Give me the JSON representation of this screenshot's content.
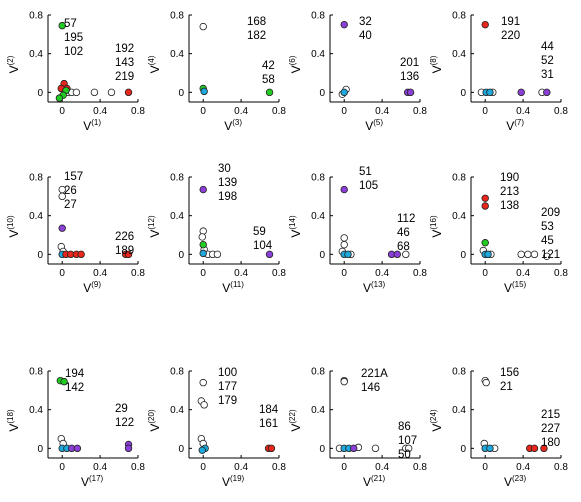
{
  "chart_data": {
    "type": "scatter",
    "xlim": [
      -0.15,
      0.8
    ],
    "ylim": [
      -0.1,
      0.8
    ],
    "xticks": [
      "0",
      "0.4",
      "0.8"
    ],
    "yticks": [
      "0",
      "0.4",
      "0.8"
    ],
    "grid": false,
    "colors": {
      "green": "#22cc22",
      "red": "#e8261c",
      "purple": "#8a3fd6",
      "cyan": "#1ea8dc",
      "open": "#ffffff",
      "edge": "#222222"
    },
    "panels": [
      {
        "xlabel_base": "V",
        "xlabel_sup": "(1)",
        "ylabel_base": "V",
        "ylabel_sup": "(2)",
        "annotations": [
          {
            "lines": [
              "57",
              "195",
              "102"
            ]
          },
          {
            "lines": [
              "192",
              "143",
              "219"
            ]
          }
        ],
        "points": [
          {
            "x": 0,
            "y": 0.69,
            "c": "green"
          },
          {
            "x": 0.02,
            "y": 0.09,
            "c": "red"
          },
          {
            "x": 0.05,
            "y": 0.04,
            "c": "red"
          },
          {
            "x": -0.01,
            "y": 0.04,
            "c": "red"
          },
          {
            "x": 0.04,
            "y": 0.02,
            "c": "green"
          },
          {
            "x": 0.01,
            "y": -0.03,
            "c": "green"
          },
          {
            "x": -0.03,
            "y": -0.06,
            "c": "green"
          },
          {
            "x": 0.06,
            "y": 0,
            "c": "open"
          },
          {
            "x": 0.1,
            "y": 0,
            "c": "open"
          },
          {
            "x": 0.15,
            "y": 0,
            "c": "open"
          },
          {
            "x": 0.34,
            "y": 0,
            "c": "open"
          },
          {
            "x": 0.52,
            "y": 0,
            "c": "open"
          },
          {
            "x": 0.7,
            "y": 0,
            "c": "red"
          }
        ]
      },
      {
        "xlabel_base": "V",
        "xlabel_sup": "(3)",
        "ylabel_base": "V",
        "ylabel_sup": "(4)",
        "annotations": [
          {
            "lines": [
              "168",
              "182"
            ]
          },
          {
            "lines": [
              "42",
              "58"
            ]
          }
        ],
        "points": [
          {
            "x": 0,
            "y": 0.68,
            "c": "open"
          },
          {
            "x": 0,
            "y": 0.04,
            "c": "green"
          },
          {
            "x": 0.01,
            "y": 0.01,
            "c": "cyan"
          },
          {
            "x": 0.7,
            "y": 0,
            "c": "green"
          }
        ]
      },
      {
        "xlabel_base": "V",
        "xlabel_sup": "(5)",
        "ylabel_base": "V",
        "ylabel_sup": "(6)",
        "annotations": [
          {
            "lines": [
              "32",
              "40"
            ]
          },
          {
            "lines": [
              "201",
              "136"
            ]
          }
        ],
        "points": [
          {
            "x": 0,
            "y": 0.7,
            "c": "purple"
          },
          {
            "x": 0.02,
            "y": 0.03,
            "c": "open"
          },
          {
            "x": 0,
            "y": 0,
            "c": "cyan"
          },
          {
            "x": -0.02,
            "y": -0.02,
            "c": "open"
          },
          {
            "x": 0.67,
            "y": 0,
            "c": "purple"
          },
          {
            "x": 0.7,
            "y": 0,
            "c": "purple"
          }
        ]
      },
      {
        "xlabel_base": "V",
        "xlabel_sup": "(7)",
        "ylabel_base": "V",
        "ylabel_sup": "(8)",
        "annotations": [
          {
            "lines": [
              "191",
              "220"
            ]
          },
          {
            "lines": [
              "44",
              "52",
              "31"
            ]
          }
        ],
        "points": [
          {
            "x": 0,
            "y": 0.7,
            "c": "red"
          },
          {
            "x": -0.04,
            "y": 0,
            "c": "open"
          },
          {
            "x": 0.01,
            "y": 0,
            "c": "cyan"
          },
          {
            "x": 0.05,
            "y": 0,
            "c": "cyan"
          },
          {
            "x": 0.08,
            "y": 0,
            "c": "open"
          },
          {
            "x": 0.38,
            "y": 0,
            "c": "purple"
          },
          {
            "x": 0.6,
            "y": 0,
            "c": "open"
          },
          {
            "x": 0.65,
            "y": 0,
            "c": "purple"
          }
        ]
      },
      {
        "xlabel_base": "V",
        "xlabel_sup": "(9)",
        "ylabel_base": "V",
        "ylabel_sup": "(10)",
        "annotations": [
          {
            "lines": [
              "157",
              "26",
              "27"
            ]
          },
          {
            "lines": [
              "226",
              "189"
            ]
          }
        ],
        "points": [
          {
            "x": 0,
            "y": 0.67,
            "c": "open"
          },
          {
            "x": 0,
            "y": 0.6,
            "c": "open"
          },
          {
            "x": 0,
            "y": 0.27,
            "c": "purple"
          },
          {
            "x": -0.01,
            "y": 0.08,
            "c": "open"
          },
          {
            "x": 0.01,
            "y": 0.03,
            "c": "open"
          },
          {
            "x": 0,
            "y": 0,
            "c": "cyan"
          },
          {
            "x": 0.04,
            "y": 0,
            "c": "red"
          },
          {
            "x": 0.09,
            "y": 0,
            "c": "red"
          },
          {
            "x": 0.15,
            "y": 0,
            "c": "red"
          },
          {
            "x": 0.2,
            "y": 0,
            "c": "red"
          },
          {
            "x": 0.67,
            "y": 0,
            "c": "red"
          },
          {
            "x": 0.7,
            "y": 0,
            "c": "red"
          }
        ]
      },
      {
        "xlabel_base": "V",
        "xlabel_sup": "(11)",
        "ylabel_base": "V",
        "ylabel_sup": "(12)",
        "annotations": [
          {
            "lines": [
              "30",
              "139",
              "198"
            ]
          },
          {
            "lines": [
              "59",
              "104"
            ]
          }
        ],
        "points": [
          {
            "x": 0,
            "y": 0.67,
            "c": "purple"
          },
          {
            "x": 0,
            "y": 0.24,
            "c": "open"
          },
          {
            "x": -0.01,
            "y": 0.18,
            "c": "open"
          },
          {
            "x": 0,
            "y": 0.1,
            "c": "green"
          },
          {
            "x": 0.01,
            "y": 0.05,
            "c": "open"
          },
          {
            "x": 0,
            "y": 0.01,
            "c": "cyan"
          },
          {
            "x": 0.05,
            "y": 0,
            "c": "open"
          },
          {
            "x": 0.1,
            "y": 0,
            "c": "open"
          },
          {
            "x": 0.15,
            "y": 0,
            "c": "open"
          },
          {
            "x": 0.7,
            "y": 0,
            "c": "purple"
          }
        ]
      },
      {
        "xlabel_base": "V",
        "xlabel_sup": "(13)",
        "ylabel_base": "V",
        "ylabel_sup": "(14)",
        "annotations": [
          {
            "lines": [
              "51",
              "105"
            ]
          },
          {
            "lines": [
              "112",
              "46",
              "68"
            ]
          }
        ],
        "points": [
          {
            "x": 0,
            "y": 0.67,
            "c": "purple"
          },
          {
            "x": 0,
            "y": 0.17,
            "c": "open"
          },
          {
            "x": 0,
            "y": 0.1,
            "c": "open"
          },
          {
            "x": -0.02,
            "y": 0.03,
            "c": "open"
          },
          {
            "x": 0,
            "y": 0,
            "c": "cyan"
          },
          {
            "x": 0.04,
            "y": 0,
            "c": "cyan"
          },
          {
            "x": 0.07,
            "y": 0,
            "c": "open"
          },
          {
            "x": 0.5,
            "y": 0,
            "c": "purple"
          },
          {
            "x": 0.56,
            "y": 0,
            "c": "purple"
          },
          {
            "x": 0.65,
            "y": 0,
            "c": "open"
          }
        ]
      },
      {
        "xlabel_base": "V",
        "xlabel_sup": "(15)",
        "ylabel_base": "V",
        "ylabel_sup": "(16)",
        "annotations": [
          {
            "lines": [
              "190",
              "213",
              "138"
            ]
          },
          {
            "lines": [
              "209",
              "53",
              "45",
              "121"
            ]
          }
        ],
        "points": [
          {
            "x": 0,
            "y": 0.58,
            "c": "red"
          },
          {
            "x": 0,
            "y": 0.5,
            "c": "red"
          },
          {
            "x": 0,
            "y": 0.12,
            "c": "green"
          },
          {
            "x": -0.02,
            "y": 0.04,
            "c": "open"
          },
          {
            "x": 0,
            "y": 0,
            "c": "cyan"
          },
          {
            "x": 0.03,
            "y": 0,
            "c": "cyan"
          },
          {
            "x": 0.06,
            "y": 0,
            "c": "open"
          },
          {
            "x": 0.38,
            "y": 0,
            "c": "open"
          },
          {
            "x": 0.45,
            "y": 0,
            "c": "open"
          },
          {
            "x": 0.52,
            "y": 0,
            "c": "open"
          },
          {
            "x": 0.65,
            "y": -0.02,
            "c": "open"
          }
        ]
      },
      {
        "xlabel_base": "V",
        "xlabel_sup": "(17)",
        "ylabel_base": "V",
        "ylabel_sup": "(18)",
        "annotations": [
          {
            "lines": [
              "194",
              "142"
            ]
          },
          {
            "lines": [
              "29",
              "122"
            ]
          }
        ],
        "points": [
          {
            "x": -0.02,
            "y": 0.7,
            "c": "green"
          },
          {
            "x": 0.02,
            "y": 0.69,
            "c": "green"
          },
          {
            "x": -0.01,
            "y": 0.1,
            "c": "open"
          },
          {
            "x": 0.01,
            "y": 0.05,
            "c": "open"
          },
          {
            "x": 0,
            "y": 0,
            "c": "cyan"
          },
          {
            "x": 0.05,
            "y": 0,
            "c": "cyan"
          },
          {
            "x": 0.1,
            "y": 0,
            "c": "purple"
          },
          {
            "x": 0.16,
            "y": 0,
            "c": "purple"
          },
          {
            "x": 0.7,
            "y": 0.04,
            "c": "purple"
          },
          {
            "x": 0.7,
            "y": 0,
            "c": "purple"
          }
        ]
      },
      {
        "xlabel_base": "V",
        "xlabel_sup": "(19)",
        "ylabel_base": "V",
        "ylabel_sup": "(20)",
        "annotations": [
          {
            "lines": [
              "100",
              "177",
              "179"
            ]
          },
          {
            "lines": [
              "184",
              "161"
            ]
          }
        ],
        "points": [
          {
            "x": 0,
            "y": 0.68,
            "c": "open"
          },
          {
            "x": -0.02,
            "y": 0.49,
            "c": "open"
          },
          {
            "x": 0.01,
            "y": 0.45,
            "c": "open"
          },
          {
            "x": -0.02,
            "y": 0.1,
            "c": "open"
          },
          {
            "x": 0,
            "y": 0.05,
            "c": "open"
          },
          {
            "x": 0.02,
            "y": 0,
            "c": "cyan"
          },
          {
            "x": -0.01,
            "y": -0.02,
            "c": "cyan"
          },
          {
            "x": 0.69,
            "y": 0,
            "c": "red"
          },
          {
            "x": 0.72,
            "y": 0,
            "c": "red"
          }
        ]
      },
      {
        "xlabel_base": "V",
        "xlabel_sup": "(21)",
        "ylabel_base": "V",
        "ylabel_sup": "(22)",
        "annotations": [
          {
            "lines": [
              "221A",
              "146"
            ]
          },
          {
            "lines": [
              "86",
              "107",
              "50"
            ]
          }
        ],
        "points": [
          {
            "x": 0,
            "y": 0.7,
            "c": "open"
          },
          {
            "x": 0,
            "y": 0.69,
            "c": "open"
          },
          {
            "x": -0.05,
            "y": 0,
            "c": "open"
          },
          {
            "x": 0,
            "y": 0,
            "c": "cyan"
          },
          {
            "x": 0.05,
            "y": 0,
            "c": "cyan"
          },
          {
            "x": 0.1,
            "y": 0,
            "c": "purple"
          },
          {
            "x": 0.15,
            "y": 0.01,
            "c": "open"
          },
          {
            "x": 0.33,
            "y": 0,
            "c": "open"
          },
          {
            "x": 0.65,
            "y": 0,
            "c": "open"
          },
          {
            "x": 0.68,
            "y": 0,
            "c": "open"
          }
        ]
      },
      {
        "xlabel_base": "V",
        "xlabel_sup": "(23)",
        "ylabel_base": "V",
        "ylabel_sup": "(24)",
        "annotations": [
          {
            "lines": [
              "156",
              "21"
            ]
          },
          {
            "lines": [
              "215",
              "227",
              "180"
            ]
          }
        ],
        "points": [
          {
            "x": 0,
            "y": 0.7,
            "c": "open"
          },
          {
            "x": 0.01,
            "y": 0.68,
            "c": "open"
          },
          {
            "x": -0.01,
            "y": 0.05,
            "c": "open"
          },
          {
            "x": 0,
            "y": 0,
            "c": "cyan"
          },
          {
            "x": 0.05,
            "y": 0,
            "c": "cyan"
          },
          {
            "x": 0.1,
            "y": 0,
            "c": "open"
          },
          {
            "x": 0.47,
            "y": 0,
            "c": "red"
          },
          {
            "x": 0.52,
            "y": 0,
            "c": "red"
          },
          {
            "x": 0.62,
            "y": 0,
            "c": "red"
          }
        ]
      }
    ]
  }
}
